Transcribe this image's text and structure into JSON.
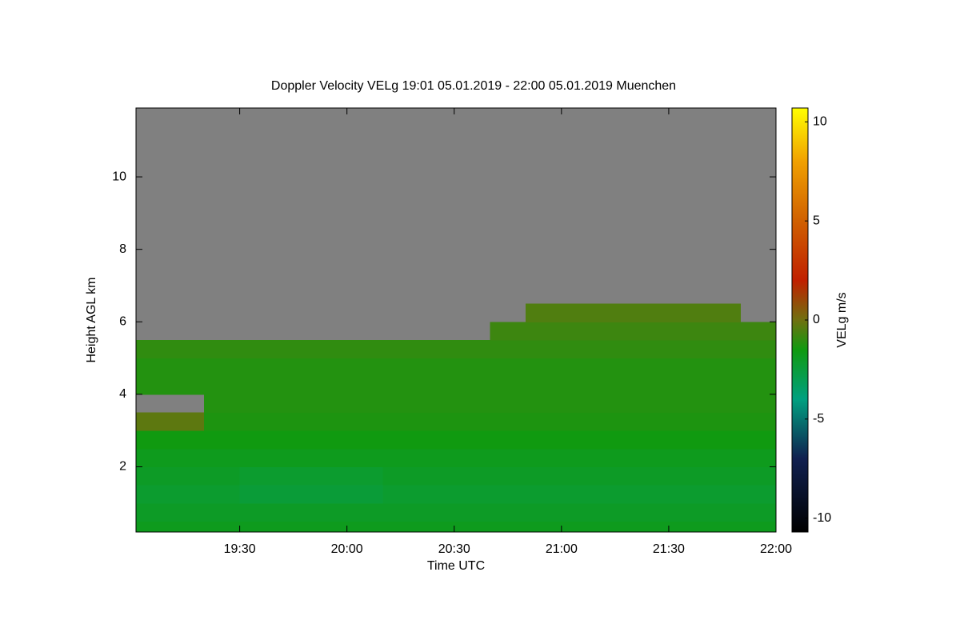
{
  "chart_data": {
    "type": "heatmap",
    "title": "Doppler Velocity VELg   19:01 05.01.2019 - 22:00 05.01.2019 Muenchen",
    "x_label": "Time UTC",
    "y_label": "Height AGL km",
    "colorbar_label": "VELg m/s",
    "x_bins": [
      1141,
      1150,
      1160,
      1170,
      1180,
      1190,
      1200,
      1210,
      1220,
      1230,
      1240,
      1250,
      1260,
      1270,
      1280,
      1290,
      1300,
      1310,
      1320
    ],
    "y_bins": [
      0.2,
      0.5,
      1.0,
      1.5,
      2.0,
      2.5,
      3.0,
      3.5,
      4.0,
      4.5,
      5.0,
      5.5,
      6.0,
      6.5
    ],
    "z": [
      [
        -1.8,
        -1.8,
        -1.8,
        -1.8,
        -1.8,
        -1.8,
        -1.8,
        -1.8,
        -1.8,
        -1.8,
        -1.8,
        -1.8,
        -1.8,
        -1.8,
        -1.8,
        -1.8,
        -1.8,
        -1.8
      ],
      [
        -2.0,
        -2.0,
        -2.0,
        -2.0,
        -2.0,
        -2.0,
        -2.0,
        -2.0,
        -2.0,
        -2.0,
        -2.0,
        -2.0,
        -2.0,
        -2.0,
        -2.0,
        -2.0,
        -2.0,
        -2.0
      ],
      [
        -2.2,
        -2.2,
        -2.2,
        -2.4,
        -2.4,
        -2.4,
        -2.4,
        -2.2,
        -2.2,
        -2.2,
        -2.2,
        -2.2,
        -2.2,
        -2.2,
        -2.2,
        -2.2,
        -2.2,
        -2.2
      ],
      [
        -2.0,
        -2.0,
        -2.0,
        -2.2,
        -2.2,
        -2.2,
        -2.2,
        -2.0,
        -2.0,
        -2.0,
        -2.0,
        -2.0,
        -2.0,
        -2.0,
        -2.0,
        -2.0,
        -2.0,
        -2.0
      ],
      [
        -1.8,
        -1.8,
        -1.8,
        -1.8,
        -1.8,
        -1.8,
        -1.8,
        -1.8,
        -1.8,
        -1.8,
        -1.8,
        -1.8,
        -1.8,
        -1.8,
        -1.8,
        -1.8,
        -1.8,
        -1.8
      ],
      [
        -1.5,
        -1.5,
        -1.5,
        -1.5,
        -1.5,
        -1.5,
        -1.5,
        -1.5,
        -1.5,
        -1.5,
        -1.5,
        -1.5,
        -1.5,
        -1.5,
        -1.5,
        -1.5,
        -1.5,
        -1.5
      ],
      [
        -0.3,
        -0.3,
        -1.3,
        -1.3,
        -1.3,
        -1.3,
        -1.3,
        -1.3,
        -1.3,
        -1.3,
        -1.3,
        -1.3,
        -1.3,
        -1.3,
        -1.3,
        -1.3,
        -1.3,
        -1.3
      ],
      [
        null,
        null,
        -1.2,
        -1.2,
        -1.2,
        -1.2,
        -1.2,
        -1.2,
        -1.2,
        -1.2,
        -1.2,
        -1.2,
        -1.2,
        -1.2,
        -1.2,
        -1.2,
        -1.2,
        -1.2
      ],
      [
        -1.2,
        -1.2,
        -1.2,
        -1.2,
        -1.2,
        -1.2,
        -1.2,
        -1.2,
        -1.2,
        -1.2,
        -1.2,
        -1.2,
        -1.2,
        -1.2,
        -1.2,
        -1.2,
        -1.2,
        -1.2
      ],
      [
        -1.2,
        -1.2,
        -1.2,
        -1.2,
        -1.2,
        -1.2,
        -1.2,
        -1.2,
        -1.2,
        -1.2,
        -1.2,
        -1.2,
        -1.2,
        -1.2,
        -1.2,
        -1.2,
        -1.2,
        -1.2
      ],
      [
        -1.0,
        -1.0,
        -1.0,
        -1.0,
        -1.0,
        -1.0,
        -1.0,
        -1.0,
        -1.0,
        -1.0,
        -1.0,
        -1.0,
        -1.0,
        -1.0,
        -1.0,
        -1.0,
        -1.0,
        -1.0
      ],
      [
        null,
        null,
        null,
        null,
        null,
        null,
        null,
        null,
        null,
        null,
        -0.8,
        -0.8,
        -0.8,
        -0.8,
        -0.8,
        -0.8,
        -0.8,
        -0.8
      ],
      [
        null,
        null,
        null,
        null,
        null,
        null,
        null,
        null,
        null,
        null,
        null,
        -0.5,
        -0.5,
        -0.5,
        -0.5,
        -0.5,
        -0.5,
        null
      ]
    ],
    "background": "#808080",
    "xlim": [
      1141,
      1320
    ],
    "xticks": [
      {
        "value": 1170,
        "label": "19:30"
      },
      {
        "value": 1200,
        "label": "20:00"
      },
      {
        "value": 1230,
        "label": "20:30"
      },
      {
        "value": 1260,
        "label": "21:00"
      },
      {
        "value": 1290,
        "label": "21:30"
      },
      {
        "value": 1320,
        "label": "22:00"
      }
    ],
    "ylim": [
      0.2,
      11.9
    ],
    "yticks": [
      2,
      4,
      6,
      8,
      10
    ],
    "clim": [
      -10.7,
      10.7
    ],
    "cticks": [
      -10,
      -5,
      0,
      5,
      10
    ],
    "colorscale": [
      [
        -10.7,
        "#000000"
      ],
      [
        -7,
        "#102050"
      ],
      [
        -4,
        "#00a080"
      ],
      [
        -1.5,
        "#109a10"
      ],
      [
        0,
        "#707010"
      ],
      [
        2,
        "#c02000"
      ],
      [
        5,
        "#d06000"
      ],
      [
        8,
        "#f0a000"
      ],
      [
        10.7,
        "#ffff00"
      ]
    ]
  }
}
